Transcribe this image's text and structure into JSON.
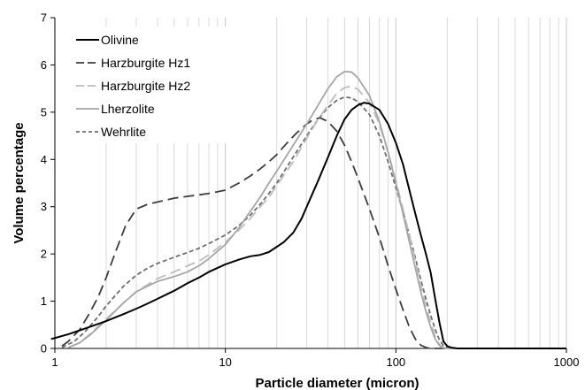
{
  "chart_data": {
    "type": "line",
    "xlabel": "Particle diameter (micron)",
    "ylabel": "Volume percentage",
    "xscale": "log",
    "xlim": [
      1,
      1000
    ],
    "ylim": [
      0,
      7
    ],
    "x_ticks": [
      1,
      10,
      100,
      1000
    ],
    "x_tick_labels": [
      "1",
      "10",
      "100",
      "1000"
    ],
    "y_ticks": [
      0,
      1,
      2,
      3,
      4,
      5,
      6,
      7
    ],
    "y_tick_labels": [
      "0",
      "1",
      "2",
      "3",
      "4",
      "5",
      "6",
      "7"
    ],
    "grid": "vertical minor and major lines on log x axis",
    "legend_position": "top-left",
    "series": [
      {
        "name": "Olivine",
        "color": "#000000",
        "style": "solid",
        "points": [
          [
            0.95,
            0.2
          ],
          [
            1,
            0.22
          ],
          [
            1.2,
            0.3
          ],
          [
            1.5,
            0.42
          ],
          [
            2,
            0.58
          ],
          [
            2.5,
            0.72
          ],
          [
            3,
            0.84
          ],
          [
            3.5,
            0.95
          ],
          [
            4,
            1.05
          ],
          [
            5,
            1.22
          ],
          [
            6,
            1.38
          ],
          [
            7,
            1.5
          ],
          [
            8,
            1.62
          ],
          [
            10,
            1.78
          ],
          [
            12,
            1.88
          ],
          [
            14,
            1.95
          ],
          [
            16,
            1.98
          ],
          [
            18,
            2.04
          ],
          [
            20,
            2.15
          ],
          [
            22,
            2.25
          ],
          [
            25,
            2.45
          ],
          [
            28,
            2.75
          ],
          [
            30,
            3.0
          ],
          [
            35,
            3.55
          ],
          [
            40,
            4.05
          ],
          [
            45,
            4.5
          ],
          [
            50,
            4.85
          ],
          [
            55,
            5.05
          ],
          [
            60,
            5.15
          ],
          [
            65,
            5.2
          ],
          [
            70,
            5.18
          ],
          [
            80,
            5.05
          ],
          [
            90,
            4.75
          ],
          [
            100,
            4.35
          ],
          [
            110,
            3.9
          ],
          [
            120,
            3.35
          ],
          [
            130,
            2.85
          ],
          [
            140,
            2.4
          ],
          [
            150,
            2.0
          ],
          [
            160,
            1.6
          ],
          [
            170,
            1.05
          ],
          [
            180,
            0.55
          ],
          [
            190,
            0.15
          ],
          [
            200,
            0.05
          ],
          [
            210,
            0.02
          ],
          [
            230,
            0.0
          ],
          [
            1000,
            0.0
          ]
        ]
      },
      {
        "name": "Harzburgite Hz1",
        "color": "#3d3d3d",
        "style": "long-dash",
        "points": [
          [
            1.1,
            0.05
          ],
          [
            1.2,
            0.15
          ],
          [
            1.4,
            0.4
          ],
          [
            1.6,
            0.75
          ],
          [
            1.8,
            1.1
          ],
          [
            2,
            1.5
          ],
          [
            2.3,
            2.1
          ],
          [
            2.6,
            2.6
          ],
          [
            3,
            2.95
          ],
          [
            3.5,
            3.05
          ],
          [
            4,
            3.1
          ],
          [
            5,
            3.18
          ],
          [
            6,
            3.22
          ],
          [
            7,
            3.25
          ],
          [
            8,
            3.28
          ],
          [
            10,
            3.35
          ],
          [
            12,
            3.5
          ],
          [
            14,
            3.65
          ],
          [
            16,
            3.8
          ],
          [
            18,
            3.95
          ],
          [
            20,
            4.1
          ],
          [
            23,
            4.35
          ],
          [
            26,
            4.55
          ],
          [
            30,
            4.75
          ],
          [
            33,
            4.85
          ],
          [
            36,
            4.88
          ],
          [
            40,
            4.8
          ],
          [
            45,
            4.6
          ],
          [
            50,
            4.3
          ],
          [
            55,
            3.95
          ],
          [
            60,
            3.6
          ],
          [
            70,
            2.95
          ],
          [
            80,
            2.35
          ],
          [
            90,
            1.75
          ],
          [
            100,
            1.25
          ],
          [
            110,
            0.82
          ],
          [
            120,
            0.45
          ],
          [
            130,
            0.2
          ],
          [
            140,
            0.07
          ],
          [
            150,
            0.02
          ],
          [
            160,
            0.0
          ],
          [
            1000,
            0.0
          ]
        ]
      },
      {
        "name": "Harzburgite Hz2",
        "color": "#bdbdbd",
        "style": "long-dash",
        "points": [
          [
            1.2,
            0.02
          ],
          [
            1.4,
            0.12
          ],
          [
            1.6,
            0.3
          ],
          [
            2,
            0.62
          ],
          [
            2.5,
            0.95
          ],
          [
            3,
            1.2
          ],
          [
            3.5,
            1.35
          ],
          [
            4,
            1.48
          ],
          [
            5,
            1.62
          ],
          [
            6,
            1.75
          ],
          [
            7,
            1.85
          ],
          [
            8,
            1.98
          ],
          [
            10,
            2.25
          ],
          [
            12,
            2.5
          ],
          [
            14,
            2.75
          ],
          [
            16,
            3.0
          ],
          [
            18,
            3.2
          ],
          [
            20,
            3.45
          ],
          [
            25,
            3.95
          ],
          [
            30,
            4.45
          ],
          [
            35,
            4.85
          ],
          [
            40,
            5.15
          ],
          [
            45,
            5.4
          ],
          [
            50,
            5.52
          ],
          [
            55,
            5.55
          ],
          [
            60,
            5.48
          ],
          [
            70,
            5.2
          ],
          [
            80,
            4.75
          ],
          [
            90,
            4.15
          ],
          [
            100,
            3.55
          ],
          [
            110,
            2.95
          ],
          [
            120,
            2.4
          ],
          [
            130,
            1.85
          ],
          [
            140,
            1.35
          ],
          [
            150,
            0.9
          ],
          [
            160,
            0.55
          ],
          [
            170,
            0.25
          ],
          [
            180,
            0.08
          ],
          [
            190,
            0.02
          ],
          [
            200,
            0.0
          ],
          [
            1000,
            0.0
          ]
        ]
      },
      {
        "name": "Lherzolite",
        "color": "#a6a6a6",
        "style": "solid",
        "points": [
          [
            1.2,
            0.02
          ],
          [
            1.4,
            0.12
          ],
          [
            1.6,
            0.28
          ],
          [
            2,
            0.6
          ],
          [
            2.5,
            0.95
          ],
          [
            3,
            1.2
          ],
          [
            3.5,
            1.32
          ],
          [
            4,
            1.42
          ],
          [
            5,
            1.52
          ],
          [
            6,
            1.62
          ],
          [
            7,
            1.75
          ],
          [
            8,
            1.9
          ],
          [
            10,
            2.2
          ],
          [
            12,
            2.55
          ],
          [
            14,
            2.9
          ],
          [
            16,
            3.2
          ],
          [
            18,
            3.5
          ],
          [
            20,
            3.75
          ],
          [
            25,
            4.3
          ],
          [
            30,
            4.75
          ],
          [
            35,
            5.15
          ],
          [
            40,
            5.5
          ],
          [
            45,
            5.75
          ],
          [
            50,
            5.86
          ],
          [
            55,
            5.85
          ],
          [
            60,
            5.72
          ],
          [
            70,
            5.35
          ],
          [
            80,
            4.8
          ],
          [
            90,
            4.15
          ],
          [
            100,
            3.5
          ],
          [
            110,
            2.85
          ],
          [
            120,
            2.25
          ],
          [
            130,
            1.7
          ],
          [
            140,
            1.2
          ],
          [
            150,
            0.78
          ],
          [
            160,
            0.45
          ],
          [
            170,
            0.2
          ],
          [
            180,
            0.06
          ],
          [
            190,
            0.01
          ],
          [
            200,
            0.0
          ],
          [
            1000,
            0.0
          ]
        ]
      },
      {
        "name": "Wehrlite",
        "color": "#6e6e6e",
        "style": "short-dash",
        "points": [
          [
            1.1,
            0.02
          ],
          [
            1.3,
            0.15
          ],
          [
            1.5,
            0.35
          ],
          [
            1.8,
            0.68
          ],
          [
            2,
            0.9
          ],
          [
            2.5,
            1.3
          ],
          [
            3,
            1.55
          ],
          [
            3.5,
            1.7
          ],
          [
            4,
            1.8
          ],
          [
            5,
            1.93
          ],
          [
            6,
            2.03
          ],
          [
            7,
            2.12
          ],
          [
            8,
            2.22
          ],
          [
            10,
            2.4
          ],
          [
            12,
            2.6
          ],
          [
            14,
            2.82
          ],
          [
            16,
            3.05
          ],
          [
            18,
            3.28
          ],
          [
            20,
            3.5
          ],
          [
            25,
            4.05
          ],
          [
            30,
            4.5
          ],
          [
            35,
            4.85
          ],
          [
            40,
            5.1
          ],
          [
            45,
            5.25
          ],
          [
            50,
            5.32
          ],
          [
            55,
            5.3
          ],
          [
            60,
            5.22
          ],
          [
            70,
            4.95
          ],
          [
            80,
            4.5
          ],
          [
            90,
            3.95
          ],
          [
            100,
            3.4
          ],
          [
            110,
            2.9
          ],
          [
            120,
            2.4
          ],
          [
            130,
            1.92
          ],
          [
            140,
            1.45
          ],
          [
            150,
            1.05
          ],
          [
            160,
            0.7
          ],
          [
            170,
            0.4
          ],
          [
            180,
            0.18
          ],
          [
            190,
            0.06
          ],
          [
            200,
            0.02
          ],
          [
            210,
            0.0
          ],
          [
            1000,
            0.0
          ]
        ]
      }
    ]
  }
}
